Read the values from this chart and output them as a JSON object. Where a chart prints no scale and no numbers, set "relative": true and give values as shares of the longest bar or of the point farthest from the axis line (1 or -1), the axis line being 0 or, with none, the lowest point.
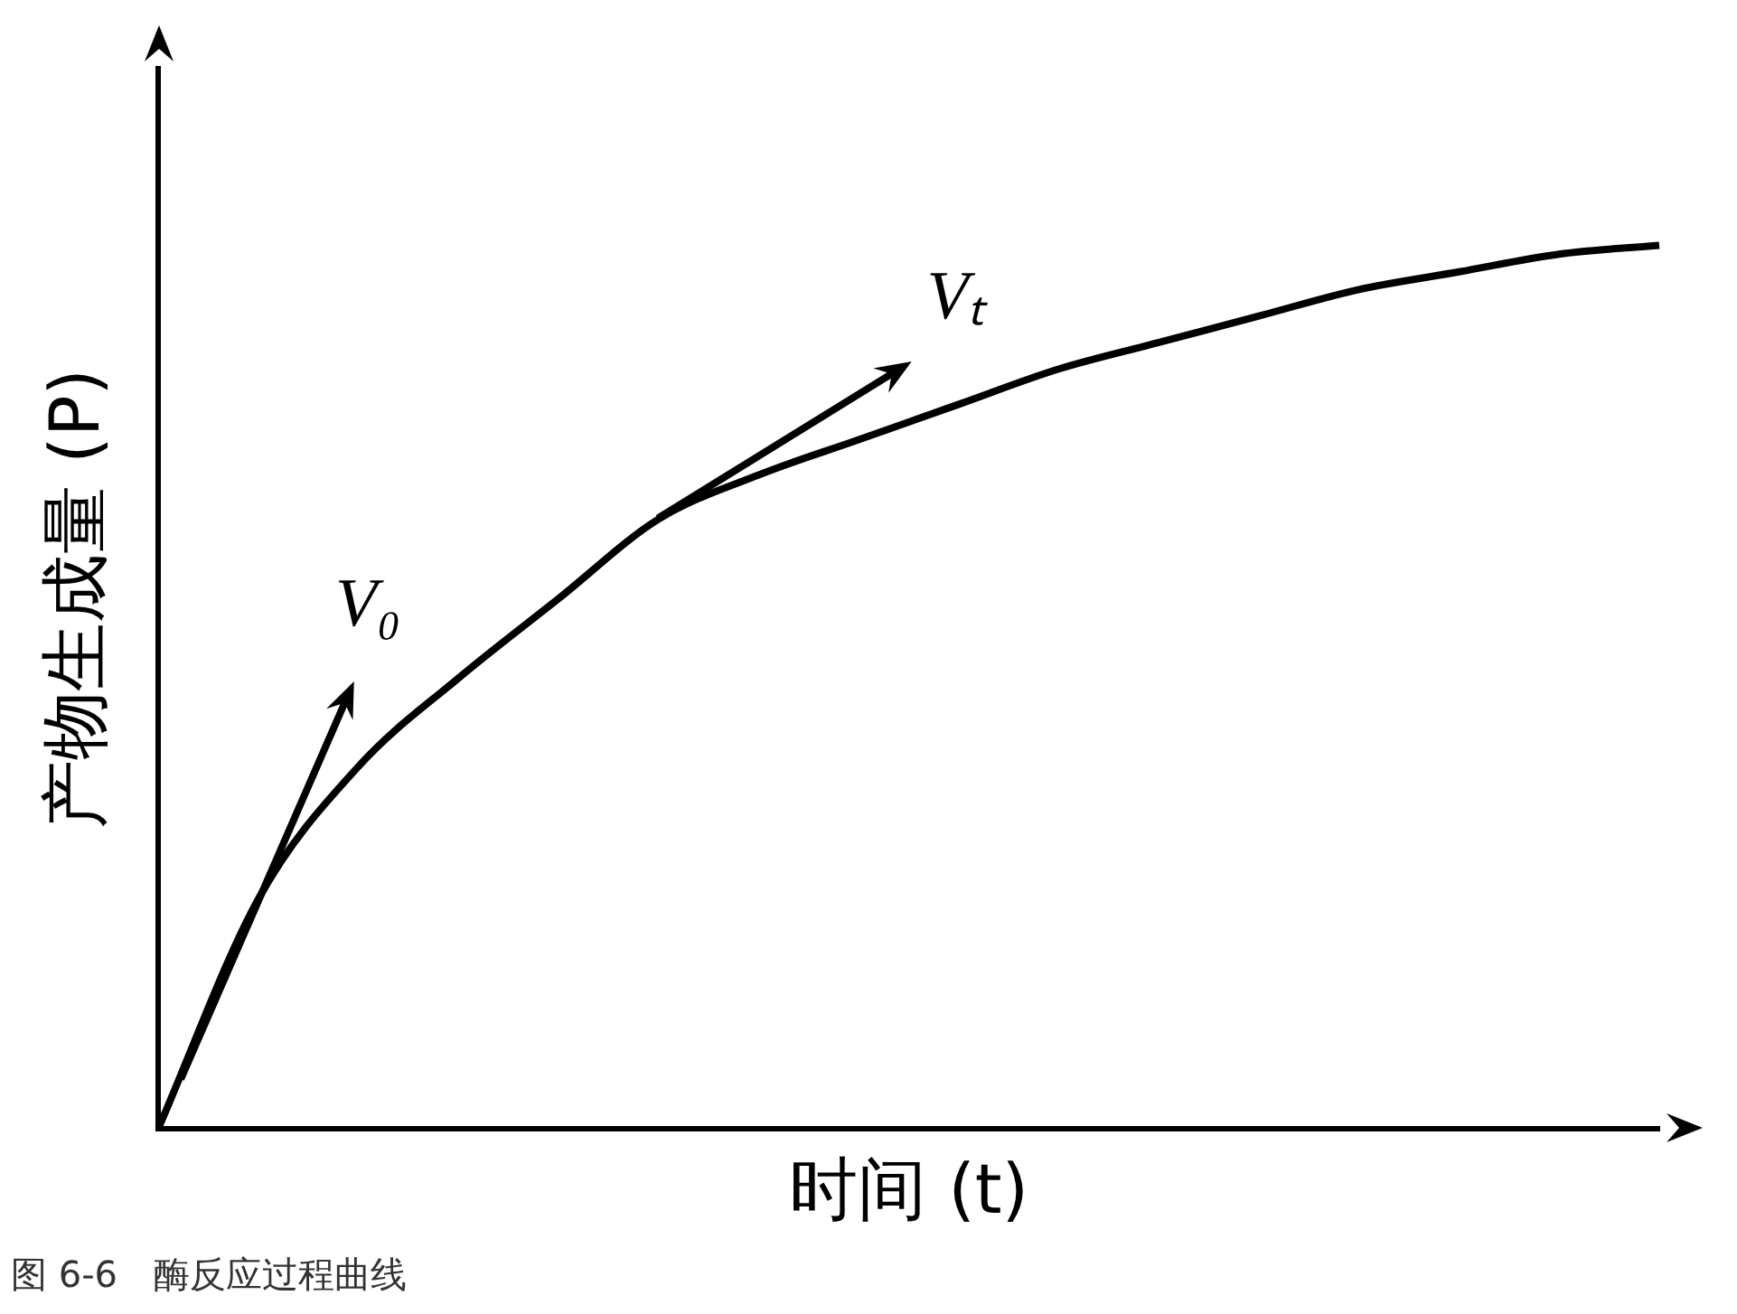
{
  "chart_data": {
    "type": "line",
    "xlabel": "时间 (t)",
    "ylabel": "产物生成量 (P)",
    "categories": [
      null,
      null,
      null,
      null,
      null,
      null,
      null,
      null,
      null,
      null,
      null,
      null,
      null,
      null,
      null,
      null
    ],
    "values": [
      0,
      0.26,
      0.41,
      0.51,
      0.6,
      0.69,
      0.74,
      0.78,
      0.82,
      0.86,
      0.89,
      0.92,
      0.95,
      0.97,
      0.99,
      1
    ],
    "color": "#000000",
    "relative": true,
    "tick_labels": false,
    "grid": false,
    "legend": false,
    "marker": "none",
    "annotations": [
      "V₀",
      "Vₜ",
      "图 6-6　酶反应过程曲线"
    ]
  }
}
